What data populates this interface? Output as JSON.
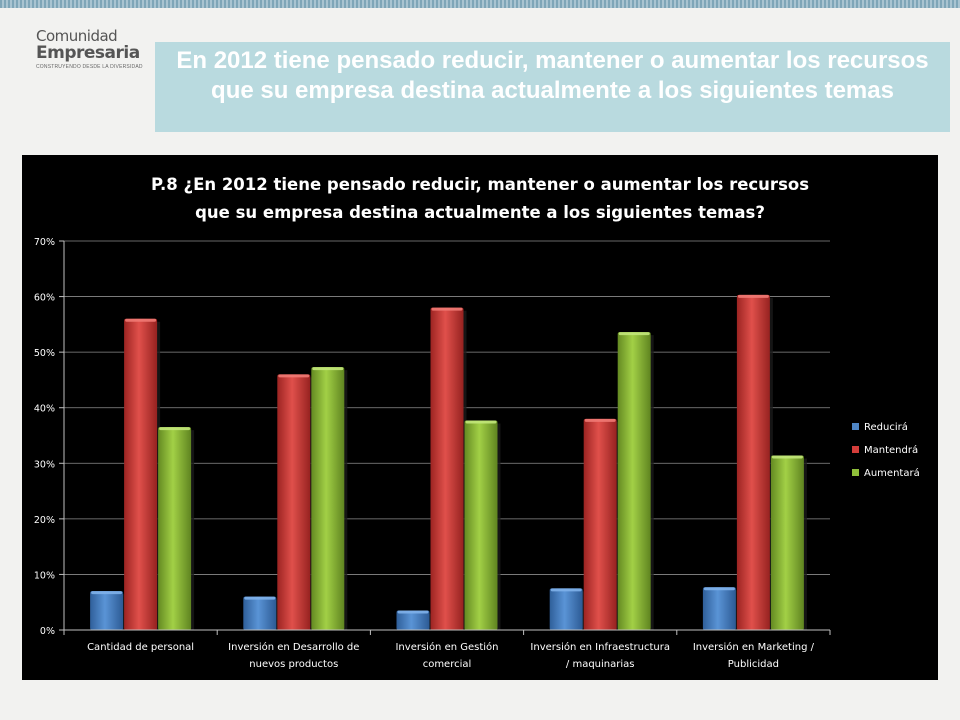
{
  "logo": {
    "line1": "Comunidad",
    "line2": "Empresaria",
    "tagline": "CONSTRUYENDO DESDE LA DIVERSIDAD"
  },
  "slide_title": "En 2012 tiene pensado reducir, mantener o aumentar los recursos que su empresa destina actualmente a los siguientes temas",
  "colors": {
    "Reducirá": "#4f86c6",
    "Mantendrá": "#d43d3a",
    "Aumentará": "#8fbf3a",
    "chart_background": "#000000",
    "title_band": "#b9dadf"
  },
  "chart_data": {
    "type": "bar",
    "title_lines": [
      "P.8 ¿En 2012 tiene pensado reducir, mantener o aumentar los recursos",
      "que su empresa destina actualmente a los siguientes temas?"
    ],
    "categories": [
      [
        "Cantidad de personal"
      ],
      [
        "Inversión en Desarrollo de",
        "nuevos productos"
      ],
      [
        "Inversión en Gestión",
        "comercial"
      ],
      [
        "Inversión en Infraestructura",
        "/ maquinarias"
      ],
      [
        "Inversión en Marketing /",
        "Publicidad"
      ]
    ],
    "series": [
      {
        "name": "Reducirá",
        "values": [
          7,
          6,
          3.5,
          7.5,
          7.7
        ]
      },
      {
        "name": "Mantendrá",
        "values": [
          56,
          46,
          58,
          38,
          60.3
        ]
      },
      {
        "name": "Aumentará",
        "values": [
          36.5,
          47.3,
          37.7,
          53.6,
          31.4
        ]
      }
    ],
    "ylim": [
      0,
      70
    ],
    "yticks": [
      0,
      10,
      20,
      30,
      40,
      50,
      60,
      70
    ],
    "ytick_suffix": "%",
    "grid": true,
    "legend_position": "right"
  }
}
